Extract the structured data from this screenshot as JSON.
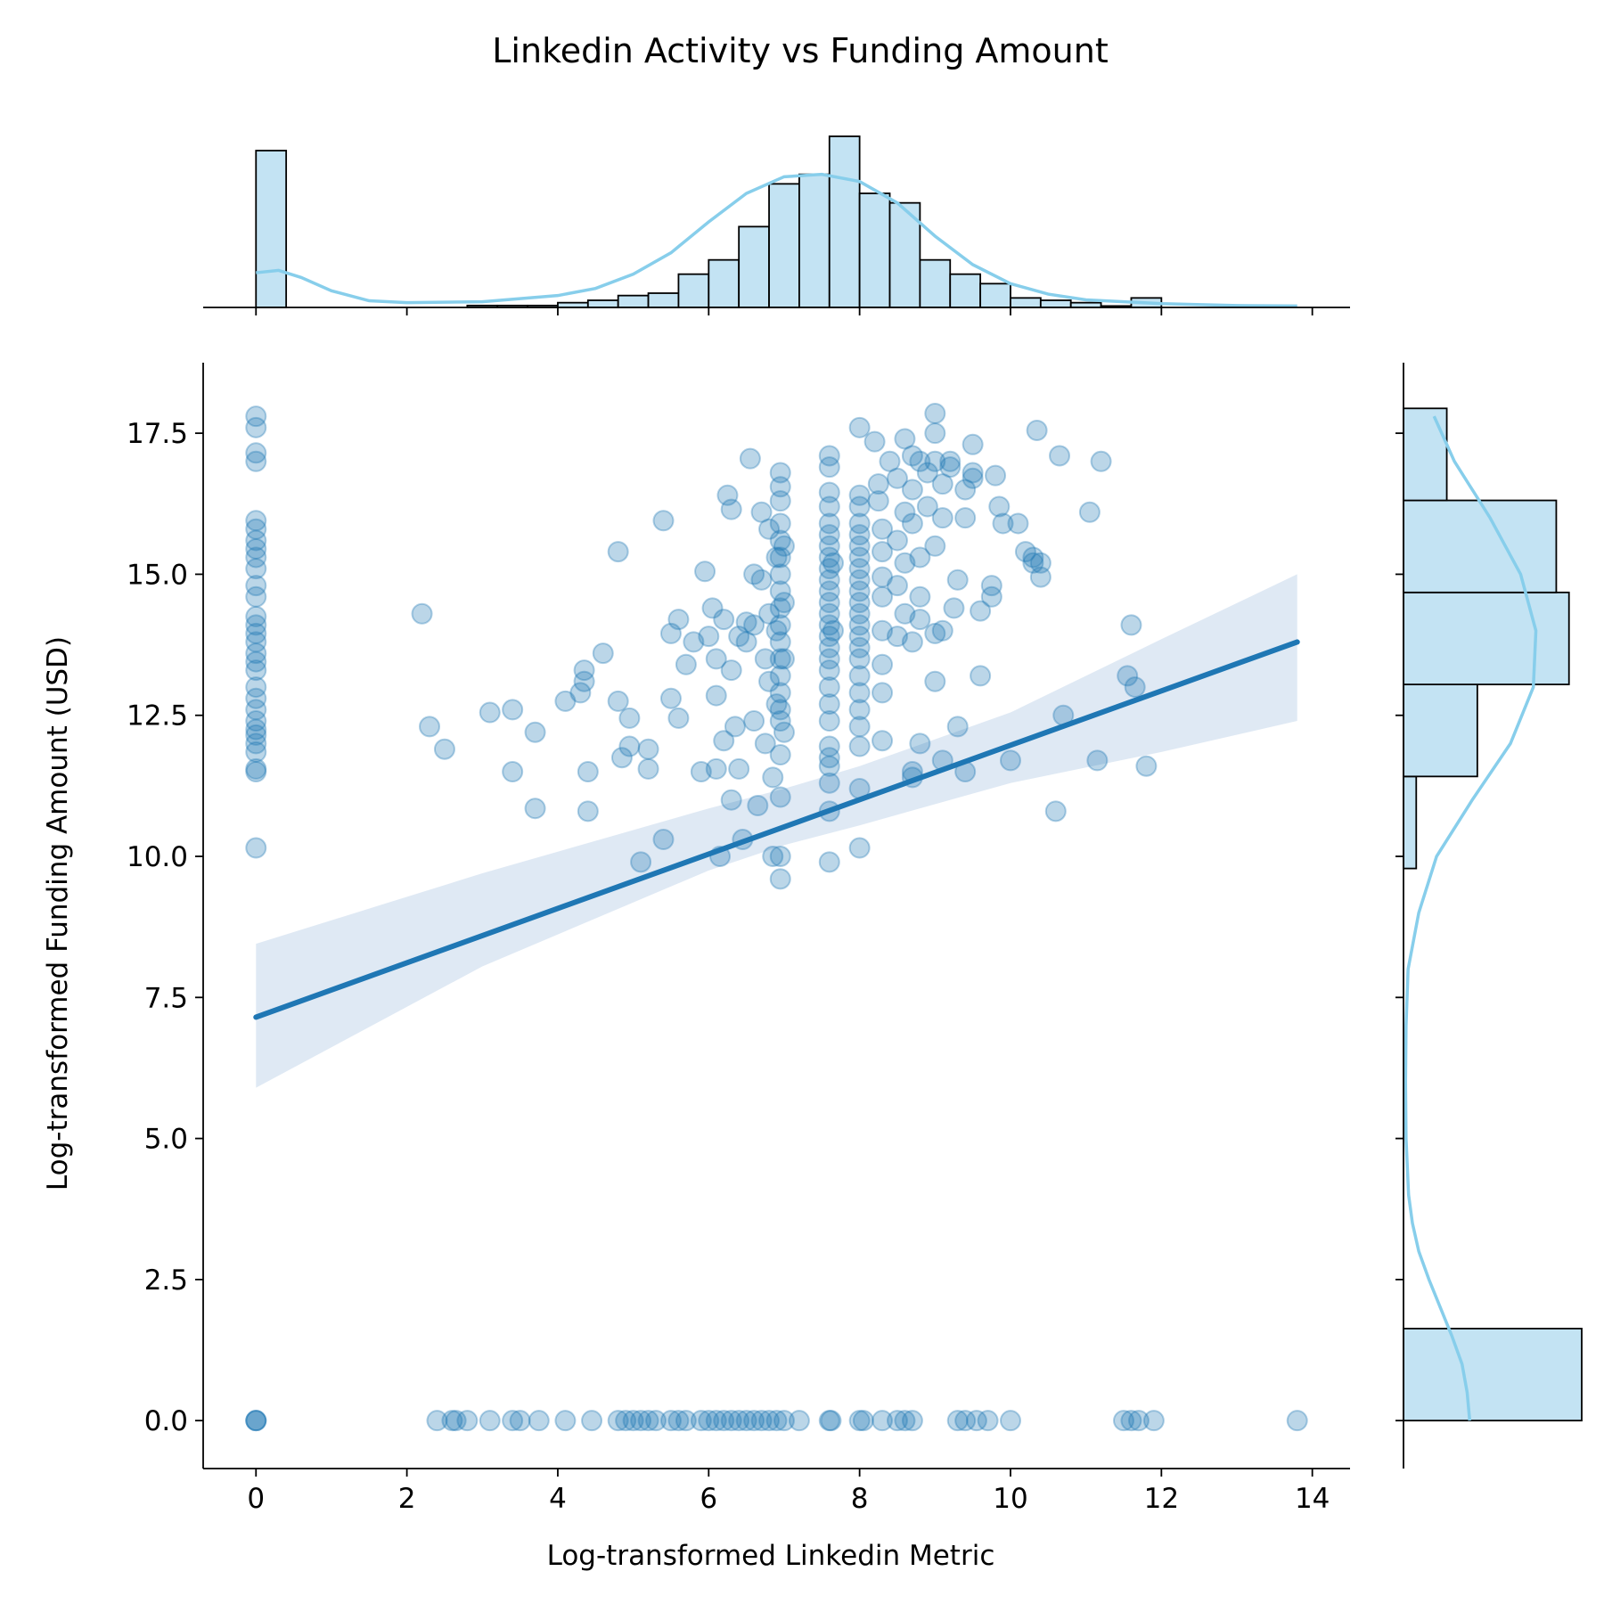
{
  "chart_data": {
    "type": "scatter",
    "title": "Linkedin Activity vs Funding Amount",
    "xlabel": "Log-transformed Linkedin Metric",
    "ylabel": "Log-transformed Funding Amount (USD)",
    "xlim": [
      -0.7,
      14.5
    ],
    "ylim": [
      -0.85,
      18.75
    ],
    "xticks": [
      0,
      2,
      4,
      6,
      8,
      10,
      12,
      14
    ],
    "xtick_labels": [
      "0",
      "2",
      "4",
      "6",
      "8",
      "10",
      "12",
      "14"
    ],
    "yticks": [
      0,
      2.5,
      5,
      7.5,
      10,
      12.5,
      15,
      17.5
    ],
    "ytick_labels": [
      "0.0",
      "2.5",
      "5.0",
      "7.5",
      "10.0",
      "12.5",
      "15.0",
      "17.5"
    ],
    "colors": {
      "points": "#1f77b4",
      "regression": "#1f77b4",
      "ci_band": "#dde8f3",
      "hist_fill": "#c3e3f3",
      "kde": "#87ceeb"
    },
    "points": [
      [
        0,
        17.8
      ],
      [
        0,
        17.6
      ],
      [
        0,
        17.15
      ],
      [
        0,
        17.0
      ],
      [
        0,
        15.95
      ],
      [
        0,
        15.8
      ],
      [
        0,
        15.6
      ],
      [
        0,
        15.45
      ],
      [
        0,
        15.3
      ],
      [
        0,
        15.1
      ],
      [
        0,
        14.8
      ],
      [
        0,
        14.6
      ],
      [
        0,
        14.25
      ],
      [
        0,
        14.1
      ],
      [
        0,
        13.95
      ],
      [
        0,
        13.8
      ],
      [
        0,
        13.6
      ],
      [
        0,
        13.45
      ],
      [
        0,
        13.3
      ],
      [
        0,
        13.0
      ],
      [
        0,
        12.8
      ],
      [
        0,
        12.6
      ],
      [
        0,
        12.4
      ],
      [
        0,
        12.25
      ],
      [
        0,
        12.15
      ],
      [
        0,
        12.0
      ],
      [
        0,
        11.85
      ],
      [
        0,
        11.55
      ],
      [
        0,
        11.5
      ],
      [
        0,
        10.15
      ],
      [
        0,
        0
      ],
      [
        0,
        0
      ],
      [
        0,
        0
      ],
      [
        2.2,
        14.3
      ],
      [
        2.3,
        12.3
      ],
      [
        2.5,
        11.9
      ],
      [
        3.1,
        12.55
      ],
      [
        3.4,
        12.6
      ],
      [
        3.7,
        12.2
      ],
      [
        3.4,
        11.5
      ],
      [
        3.7,
        10.85
      ],
      [
        4.1,
        12.75
      ],
      [
        4.3,
        12.9
      ],
      [
        4.35,
        13.3
      ],
      [
        4.35,
        13.1
      ],
      [
        4.4,
        11.5
      ],
      [
        4.4,
        10.8
      ],
      [
        4.6,
        13.6
      ],
      [
        4.8,
        15.4
      ],
      [
        4.8,
        12.75
      ],
      [
        4.85,
        11.75
      ],
      [
        4.95,
        12.45
      ],
      [
        4.95,
        11.95
      ],
      [
        5.2,
        11.55
      ],
      [
        5.1,
        9.9
      ],
      [
        5.2,
        11.9
      ],
      [
        5.4,
        10.3
      ],
      [
        5.4,
        15.95
      ],
      [
        5.5,
        12.8
      ],
      [
        5.5,
        13.95
      ],
      [
        5.6,
        12.45
      ],
      [
        5.6,
        14.2
      ],
      [
        5.7,
        13.4
      ],
      [
        5.8,
        13.8
      ],
      [
        5.9,
        11.5
      ],
      [
        5.95,
        15.05
      ],
      [
        6.0,
        13.9
      ],
      [
        6.05,
        14.4
      ],
      [
        6.1,
        13.5
      ],
      [
        6.1,
        12.85
      ],
      [
        6.1,
        11.55
      ],
      [
        6.15,
        10.0
      ],
      [
        6.2,
        12.05
      ],
      [
        6.2,
        14.2
      ],
      [
        6.25,
        16.4
      ],
      [
        6.3,
        16.15
      ],
      [
        6.3,
        13.3
      ],
      [
        6.3,
        11.0
      ],
      [
        6.35,
        12.3
      ],
      [
        6.4,
        13.9
      ],
      [
        6.4,
        11.55
      ],
      [
        6.45,
        10.3
      ],
      [
        6.5,
        14.15
      ],
      [
        6.5,
        13.8
      ],
      [
        6.55,
        17.05
      ],
      [
        6.6,
        15.0
      ],
      [
        6.6,
        14.1
      ],
      [
        6.6,
        12.4
      ],
      [
        6.65,
        10.9
      ],
      [
        6.7,
        16.1
      ],
      [
        6.7,
        14.9
      ],
      [
        6.75,
        13.5
      ],
      [
        6.75,
        12.0
      ],
      [
        6.8,
        15.8
      ],
      [
        6.8,
        14.3
      ],
      [
        6.8,
        13.1
      ],
      [
        6.85,
        11.4
      ],
      [
        6.85,
        10.0
      ],
      [
        6.9,
        15.3
      ],
      [
        6.9,
        14.0
      ],
      [
        6.9,
        12.7
      ],
      [
        6.95,
        11.8
      ],
      [
        6.95,
        12.4
      ],
      [
        6.95,
        10.0
      ],
      [
        6.95,
        9.6
      ],
      [
        6.95,
        11.05
      ],
      [
        6.95,
        16.8
      ],
      [
        6.95,
        16.55
      ],
      [
        6.95,
        16.3
      ],
      [
        6.95,
        15.9
      ],
      [
        6.95,
        15.6
      ],
      [
        6.95,
        15.3
      ],
      [
        6.95,
        15.0
      ],
      [
        6.95,
        14.7
      ],
      [
        6.95,
        14.4
      ],
      [
        6.95,
        14.1
      ],
      [
        6.95,
        13.8
      ],
      [
        6.95,
        13.5
      ],
      [
        6.95,
        13.2
      ],
      [
        6.95,
        12.9
      ],
      [
        6.95,
        12.6
      ],
      [
        7.0,
        15.5
      ],
      [
        7.0,
        14.5
      ],
      [
        7.0,
        13.5
      ],
      [
        7.0,
        12.2
      ],
      [
        7.6,
        17.1
      ],
      [
        7.6,
        16.9
      ],
      [
        7.6,
        16.45
      ],
      [
        7.6,
        16.2
      ],
      [
        7.6,
        15.9
      ],
      [
        7.6,
        15.7
      ],
      [
        7.6,
        15.5
      ],
      [
        7.6,
        15.3
      ],
      [
        7.6,
        15.1
      ],
      [
        7.6,
        14.9
      ],
      [
        7.6,
        14.7
      ],
      [
        7.6,
        14.5
      ],
      [
        7.6,
        14.3
      ],
      [
        7.6,
        14.1
      ],
      [
        7.6,
        13.9
      ],
      [
        7.6,
        13.7
      ],
      [
        7.6,
        13.5
      ],
      [
        7.6,
        13.3
      ],
      [
        7.6,
        13.0
      ],
      [
        7.6,
        12.7
      ],
      [
        7.6,
        12.4
      ],
      [
        7.6,
        11.95
      ],
      [
        7.6,
        11.75
      ],
      [
        7.6,
        11.6
      ],
      [
        7.6,
        11.3
      ],
      [
        7.6,
        10.8
      ],
      [
        7.6,
        9.9
      ],
      [
        7.65,
        15.2
      ],
      [
        7.65,
        14.0
      ],
      [
        8.0,
        17.6
      ],
      [
        8.0,
        16.4
      ],
      [
        8.0,
        16.2
      ],
      [
        8.0,
        15.9
      ],
      [
        8.0,
        15.7
      ],
      [
        8.0,
        15.5
      ],
      [
        8.0,
        15.3
      ],
      [
        8.0,
        15.1
      ],
      [
        8.0,
        14.9
      ],
      [
        8.0,
        14.7
      ],
      [
        8.0,
        14.5
      ],
      [
        8.0,
        14.3
      ],
      [
        8.0,
        14.1
      ],
      [
        8.0,
        13.9
      ],
      [
        8.0,
        13.7
      ],
      [
        8.0,
        13.5
      ],
      [
        8.0,
        13.2
      ],
      [
        8.0,
        12.9
      ],
      [
        8.0,
        12.6
      ],
      [
        8.0,
        12.3
      ],
      [
        8.0,
        11.95
      ],
      [
        8.0,
        11.2
      ],
      [
        8.0,
        10.15
      ],
      [
        8.2,
        17.35
      ],
      [
        8.25,
        16.6
      ],
      [
        8.25,
        16.3
      ],
      [
        8.3,
        15.8
      ],
      [
        8.3,
        15.4
      ],
      [
        8.3,
        14.95
      ],
      [
        8.3,
        14.6
      ],
      [
        8.3,
        14.0
      ],
      [
        8.3,
        13.4
      ],
      [
        8.3,
        12.9
      ],
      [
        8.3,
        12.05
      ],
      [
        8.4,
        17.0
      ],
      [
        8.5,
        16.7
      ],
      [
        8.5,
        15.6
      ],
      [
        8.5,
        14.8
      ],
      [
        8.5,
        13.9
      ],
      [
        8.6,
        17.4
      ],
      [
        8.6,
        16.1
      ],
      [
        8.6,
        15.2
      ],
      [
        8.6,
        14.3
      ],
      [
        8.7,
        17.1
      ],
      [
        8.7,
        16.5
      ],
      [
        8.7,
        15.9
      ],
      [
        8.7,
        13.8
      ],
      [
        8.7,
        11.5
      ],
      [
        8.7,
        11.4
      ],
      [
        8.8,
        17.0
      ],
      [
        8.8,
        15.3
      ],
      [
        8.8,
        14.6
      ],
      [
        8.8,
        14.2
      ],
      [
        8.8,
        12.0
      ],
      [
        8.9,
        16.8
      ],
      [
        8.9,
        16.2
      ],
      [
        9.0,
        17.85
      ],
      [
        9.0,
        17.5
      ],
      [
        9.0,
        17.0
      ],
      [
        9.0,
        15.5
      ],
      [
        9.0,
        13.95
      ],
      [
        9.0,
        13.1
      ],
      [
        9.1,
        16.6
      ],
      [
        9.1,
        16.0
      ],
      [
        9.1,
        14.0
      ],
      [
        9.1,
        11.7
      ],
      [
        9.2,
        17.0
      ],
      [
        9.2,
        16.9
      ],
      [
        9.25,
        14.4
      ],
      [
        9.3,
        14.9
      ],
      [
        9.3,
        12.3
      ],
      [
        9.4,
        16.5
      ],
      [
        9.4,
        16.0
      ],
      [
        9.4,
        11.5
      ],
      [
        9.5,
        17.3
      ],
      [
        9.5,
        16.8
      ],
      [
        9.5,
        16.7
      ],
      [
        9.6,
        14.35
      ],
      [
        9.6,
        13.2
      ],
      [
        9.75,
        14.8
      ],
      [
        9.75,
        14.6
      ],
      [
        9.8,
        16.75
      ],
      [
        9.85,
        16.2
      ],
      [
        9.9,
        15.9
      ],
      [
        10.1,
        15.9
      ],
      [
        10.0,
        11.7
      ],
      [
        10.2,
        15.4
      ],
      [
        10.3,
        15.2
      ],
      [
        10.3,
        15.3
      ],
      [
        10.35,
        17.55
      ],
      [
        10.4,
        14.95
      ],
      [
        10.4,
        15.2
      ],
      [
        10.6,
        10.8
      ],
      [
        10.65,
        17.1
      ],
      [
        10.7,
        12.5
      ],
      [
        11.05,
        16.1
      ],
      [
        11.15,
        11.7
      ],
      [
        11.2,
        17.0
      ],
      [
        11.55,
        13.2
      ],
      [
        11.6,
        14.1
      ],
      [
        11.65,
        13.0
      ],
      [
        11.8,
        11.6
      ],
      [
        2.4,
        0
      ],
      [
        2.6,
        0
      ],
      [
        2.65,
        0
      ],
      [
        2.8,
        0
      ],
      [
        3.1,
        0
      ],
      [
        3.4,
        0
      ],
      [
        3.5,
        0
      ],
      [
        3.75,
        0
      ],
      [
        4.1,
        0
      ],
      [
        4.45,
        0
      ],
      [
        4.8,
        0
      ],
      [
        4.9,
        0
      ],
      [
        5.0,
        0
      ],
      [
        5.1,
        0
      ],
      [
        5.2,
        0
      ],
      [
        5.3,
        0
      ],
      [
        5.5,
        0
      ],
      [
        5.6,
        0
      ],
      [
        5.7,
        0
      ],
      [
        5.9,
        0
      ],
      [
        6.0,
        0
      ],
      [
        6.1,
        0
      ],
      [
        6.2,
        0
      ],
      [
        6.3,
        0
      ],
      [
        6.4,
        0
      ],
      [
        6.5,
        0
      ],
      [
        6.6,
        0
      ],
      [
        6.7,
        0
      ],
      [
        6.8,
        0
      ],
      [
        6.9,
        0
      ],
      [
        7.0,
        0
      ],
      [
        7.2,
        0
      ],
      [
        7.6,
        0
      ],
      [
        7.62,
        0
      ],
      [
        8.0,
        0
      ],
      [
        8.05,
        0
      ],
      [
        8.3,
        0
      ],
      [
        8.5,
        0
      ],
      [
        8.6,
        0
      ],
      [
        8.7,
        0
      ],
      [
        9.3,
        0
      ],
      [
        9.4,
        0
      ],
      [
        9.55,
        0
      ],
      [
        9.7,
        0
      ],
      [
        10.0,
        0
      ],
      [
        11.5,
        0
      ],
      [
        11.6,
        0
      ],
      [
        11.7,
        0
      ],
      [
        11.9,
        0
      ],
      [
        13.8,
        0
      ]
    ],
    "regression": {
      "x": [
        0,
        13.8
      ],
      "y": [
        7.15,
        13.8
      ],
      "ci_upper": [
        [
          0,
          8.45
        ],
        [
          3,
          9.7
        ],
        [
          6,
          10.85
        ],
        [
          7,
          11.2
        ],
        [
          8,
          11.6
        ],
        [
          10,
          12.55
        ],
        [
          12,
          13.85
        ],
        [
          13.8,
          15.0
        ]
      ],
      "ci_lower": [
        [
          0,
          5.9
        ],
        [
          3,
          8.05
        ],
        [
          6,
          9.75
        ],
        [
          7,
          10.2
        ],
        [
          8,
          10.55
        ],
        [
          10,
          11.3
        ],
        [
          12,
          11.85
        ],
        [
          13.8,
          12.4
        ]
      ]
    },
    "x_histogram": {
      "bin_edges": [
        0,
        0.4,
        0.8,
        1.2,
        1.6,
        2.0,
        2.4,
        2.8,
        3.2,
        3.6,
        4.0,
        4.4,
        4.8,
        5.2,
        5.6,
        6.0,
        6.4,
        6.8,
        7.2,
        7.6,
        8.0,
        8.4,
        8.8,
        9.2,
        9.6,
        10.0,
        10.4,
        10.8,
        11.2,
        11.6,
        12.0,
        12.4,
        12.8,
        13.2,
        13.6,
        14.0
      ],
      "counts": [
        33,
        0,
        0,
        0,
        0,
        0,
        0,
        0.4,
        0.4,
        0.4,
        1,
        1.5,
        2.5,
        3,
        7,
        10,
        17,
        26,
        28,
        36,
        24,
        22,
        10,
        7,
        5,
        2,
        1.5,
        1,
        0.3,
        2,
        0,
        0,
        0,
        0,
        0
      ]
    },
    "x_kde": [
      [
        0,
        7.3
      ],
      [
        0.3,
        7.8
      ],
      [
        0.6,
        6.3
      ],
      [
        1,
        3.5
      ],
      [
        1.5,
        1.4
      ],
      [
        2,
        1
      ],
      [
        3,
        1.2
      ],
      [
        4,
        2.5
      ],
      [
        4.5,
        4
      ],
      [
        5,
        7
      ],
      [
        5.5,
        11.5
      ],
      [
        6,
        18
      ],
      [
        6.5,
        24
      ],
      [
        7,
        27.5
      ],
      [
        7.5,
        28
      ],
      [
        8,
        26.5
      ],
      [
        8.5,
        22
      ],
      [
        9,
        15
      ],
      [
        9.5,
        9
      ],
      [
        10,
        5
      ],
      [
        10.5,
        2.8
      ],
      [
        11,
        1.6
      ],
      [
        12,
        0.8
      ],
      [
        13,
        0.4
      ],
      [
        13.8,
        0.3
      ]
    ],
    "y_histogram": {
      "bin_edges": [
        0,
        1.6309,
        3.2618,
        4.8927,
        6.5236,
        8.1545,
        9.7854,
        11.4163,
        13.0472,
        14.6781,
        16.309,
        17.9399
      ],
      "counts": [
        70,
        0,
        0,
        0,
        0,
        0,
        5,
        29,
        65,
        60,
        17
      ]
    },
    "y_kde": [
      [
        0,
        26
      ],
      [
        0.5,
        25
      ],
      [
        1,
        23
      ],
      [
        1.5,
        19
      ],
      [
        2,
        14.5
      ],
      [
        2.5,
        10
      ],
      [
        3,
        6
      ],
      [
        3.5,
        3.5
      ],
      [
        4,
        2
      ],
      [
        5,
        1
      ],
      [
        6,
        0.8
      ],
      [
        7,
        1
      ],
      [
        8,
        1.8
      ],
      [
        9,
        6
      ],
      [
        10,
        13
      ],
      [
        11,
        27
      ],
      [
        12,
        42
      ],
      [
        13,
        51
      ],
      [
        14,
        52
      ],
      [
        15,
        46
      ],
      [
        16,
        34
      ],
      [
        17,
        20
      ],
      [
        17.8,
        12
      ]
    ]
  }
}
